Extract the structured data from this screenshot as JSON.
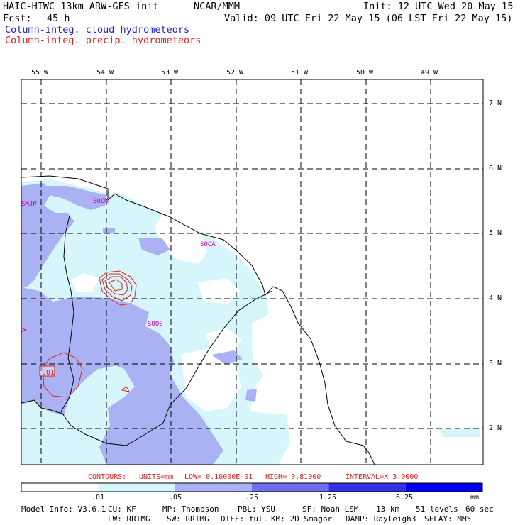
{
  "header": {
    "model_title": "HAIC-HIWC 13km ARW-GFS init",
    "org": "NCAR/MMM",
    "init": "Init: 12 UTC Wed 20 May 15",
    "fcst_label": "Fcst:",
    "fcst_value": "45 h",
    "valid": "Valid: 09 UTC Fri 22 May 15 (06 LST Fri 22 May 15)",
    "field_cloud": "Column-integ. cloud hydrometeors",
    "field_precip": "Column-integ. precip. hydrometeors"
  },
  "map": {
    "longitude_labels": [
      "55 W",
      "54 W",
      "53 W",
      "52 W",
      "51 W",
      "50 W",
      "49 W"
    ],
    "latitude_labels": [
      "7 N",
      "6 N",
      "5 N",
      "4 N",
      "3 N",
      "2 N"
    ],
    "stations": [
      "SMJP",
      "SOCM",
      "SOCA",
      "SOOS"
    ],
    "contour_label": ".01"
  },
  "contour_info": {
    "contours_label": "CONTOURS:",
    "units": "UNITS=mm",
    "low": "LOW= 0.10000E-01",
    "high": "HIGH= 0.81000",
    "interval": "INTERVAL=X  3.0000"
  },
  "colorbar": {
    "ticks": [
      ".01",
      ".05",
      ".25",
      "1.25",
      "6.25"
    ],
    "units": "mm",
    "colors": [
      "#ffffff",
      "#d6f6fb",
      "#aab2f4",
      "#6f6ef0",
      "#3430e8",
      "#0000f0"
    ]
  },
  "model_info": {
    "version": "Model Info: V3.6.1",
    "cu": "CU: KF",
    "mp": "MP: Thompson",
    "pbl": "PBL: YSU",
    "sf": "SF: Noah LSM",
    "res": "13 km",
    "levels": "51 levels",
    "dt": "60 sec",
    "lw": "LW: RRTMG",
    "sw": "SW: RRTMG",
    "diff": "DIFF: full",
    "km": "KM: 2D Smagor",
    "damp": "DAMP: Rayleigh3",
    "sflay": "SFLAY: MM5"
  },
  "colors": {
    "cloud_text": "#2020d0",
    "precip_text": "#e02020",
    "station": "#c000c0",
    "light_cloud": "#d6f6fb",
    "mid_cloud": "#aab2f4"
  }
}
